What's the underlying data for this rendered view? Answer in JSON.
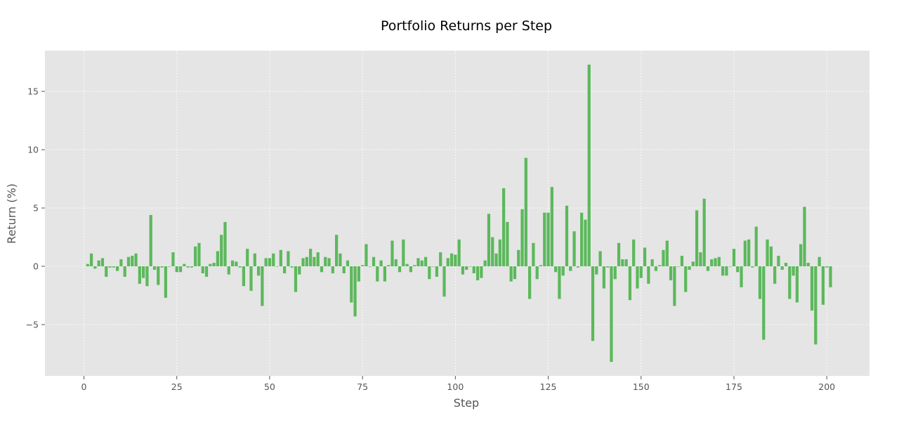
{
  "chart_data": {
    "type": "bar",
    "title": "Portfolio Returns per Step",
    "xlabel": "Step",
    "ylabel": "Return (%)",
    "xlim": [
      -10.5,
      211.5
    ],
    "ylim": [
      -9.4,
      18.5
    ],
    "xticks": [
      0,
      25,
      50,
      75,
      100,
      125,
      150,
      175,
      200
    ],
    "xtick_labels": [
      "0",
      "25",
      "50",
      "75",
      "100",
      "125",
      "150",
      "175",
      "200"
    ],
    "yticks": [
      -5,
      0,
      5,
      10,
      15
    ],
    "ytick_labels": [
      "−5",
      "0",
      "5",
      "10",
      "15"
    ],
    "grid": true,
    "style": "ggplot",
    "bar_color": "#5cb85c",
    "plot_background": "#e5e5e5",
    "grid_color": "#ffffff",
    "x": [
      1,
      2,
      3,
      4,
      5,
      6,
      7,
      8,
      9,
      10,
      11,
      12,
      13,
      14,
      15,
      16,
      17,
      18,
      19,
      20,
      21,
      22,
      23,
      24,
      25,
      26,
      27,
      28,
      29,
      30,
      31,
      32,
      33,
      34,
      35,
      36,
      37,
      38,
      39,
      40,
      41,
      42,
      43,
      44,
      45,
      46,
      47,
      48,
      49,
      50,
      51,
      52,
      53,
      54,
      55,
      56,
      57,
      58,
      59,
      60,
      61,
      62,
      63,
      64,
      65,
      66,
      67,
      68,
      69,
      70,
      71,
      72,
      73,
      74,
      75,
      76,
      77,
      78,
      79,
      80,
      81,
      82,
      83,
      84,
      85,
      86,
      87,
      88,
      89,
      90,
      91,
      92,
      93,
      94,
      95,
      96,
      97,
      98,
      99,
      100,
      101,
      102,
      103,
      104,
      105,
      106,
      107,
      108,
      109,
      110,
      111,
      112,
      113,
      114,
      115,
      116,
      117,
      118,
      119,
      120,
      121,
      122,
      123,
      124,
      125,
      126,
      127,
      128,
      129,
      130,
      131,
      132,
      133,
      134,
      135,
      136,
      137,
      138,
      139,
      140,
      141,
      142,
      143,
      144,
      145,
      146,
      147,
      148,
      149,
      150,
      151,
      152,
      153,
      154,
      155,
      156,
      157,
      158,
      159,
      160,
      161,
      162,
      163,
      164,
      165,
      166,
      167,
      168,
      169,
      170,
      171,
      172,
      173,
      174,
      175,
      176,
      177,
      178,
      179,
      180,
      181,
      182,
      183,
      184,
      185,
      186,
      187,
      188,
      189,
      190,
      191,
      192,
      193,
      194,
      195,
      196,
      197,
      198,
      199,
      200,
      201
    ],
    "values": [
      0.2,
      1.1,
      -0.2,
      0.5,
      0.7,
      -0.9,
      -0.1,
      -0.1,
      -0.4,
      0.6,
      -0.9,
      0.8,
      0.9,
      1.1,
      -1.5,
      -1.0,
      -1.7,
      4.4,
      -0.3,
      -1.6,
      -0.1,
      -2.7,
      0.0,
      1.2,
      -0.5,
      -0.5,
      0.2,
      -0.1,
      -0.1,
      1.7,
      2.0,
      -0.6,
      -0.9,
      0.2,
      0.3,
      1.3,
      2.7,
      3.8,
      -0.7,
      0.5,
      0.4,
      -0.1,
      -1.7,
      1.5,
      -2.1,
      1.1,
      -0.8,
      -3.4,
      0.7,
      0.7,
      1.1,
      0.0,
      1.4,
      -0.6,
      1.3,
      -0.1,
      -2.2,
      -0.7,
      0.7,
      0.8,
      1.5,
      0.8,
      1.2,
      -0.5,
      0.8,
      0.7,
      -0.6,
      2.7,
      1.1,
      -0.6,
      0.5,
      -3.1,
      -4.3,
      -1.3,
      0.1,
      1.9,
      0.0,
      0.8,
      -1.3,
      0.5,
      -1.3,
      0.1,
      2.2,
      0.6,
      -0.5,
      2.3,
      0.2,
      -0.5,
      0.1,
      0.7,
      0.5,
      0.8,
      -1.1,
      0.0,
      -0.9,
      1.2,
      -2.6,
      0.7,
      1.1,
      1.0,
      2.3,
      -0.7,
      -0.3,
      0.0,
      -0.6,
      -1.2,
      -1.0,
      0.5,
      4.5,
      2.5,
      1.1,
      2.3,
      6.7,
      3.8,
      -1.3,
      -1.1,
      1.4,
      4.9,
      9.3,
      -2.8,
      2.0,
      -1.1,
      0.1,
      4.6,
      4.6,
      6.8,
      -0.5,
      -2.8,
      -0.8,
      5.2,
      -0.4,
      3.0,
      -0.1,
      4.6,
      4.0,
      17.3,
      -6.4,
      -0.7,
      1.3,
      -1.9,
      -0.1,
      -8.2,
      -1.1,
      2.0,
      0.6,
      0.6,
      -2.9,
      2.3,
      -1.9,
      -1.0,
      1.6,
      -1.5,
      0.6,
      -0.4,
      0.1,
      1.4,
      2.2,
      -1.2,
      -3.4,
      0.0,
      0.9,
      -2.2,
      -0.3,
      0.4,
      4.8,
      1.2,
      5.8,
      -0.4,
      0.6,
      0.7,
      0.8,
      -0.8,
      -0.8,
      0.0,
      1.5,
      -0.5,
      -1.8,
      2.2,
      2.3,
      -0.1,
      3.4,
      -2.8,
      -6.3,
      2.3,
      1.7,
      -1.5,
      0.9,
      -0.3,
      0.3,
      -2.8,
      -0.8,
      -3.1,
      1.9,
      5.1,
      0.3,
      -3.8,
      -6.7,
      0.8,
      -3.3,
      -0.1,
      -1.8
    ]
  }
}
